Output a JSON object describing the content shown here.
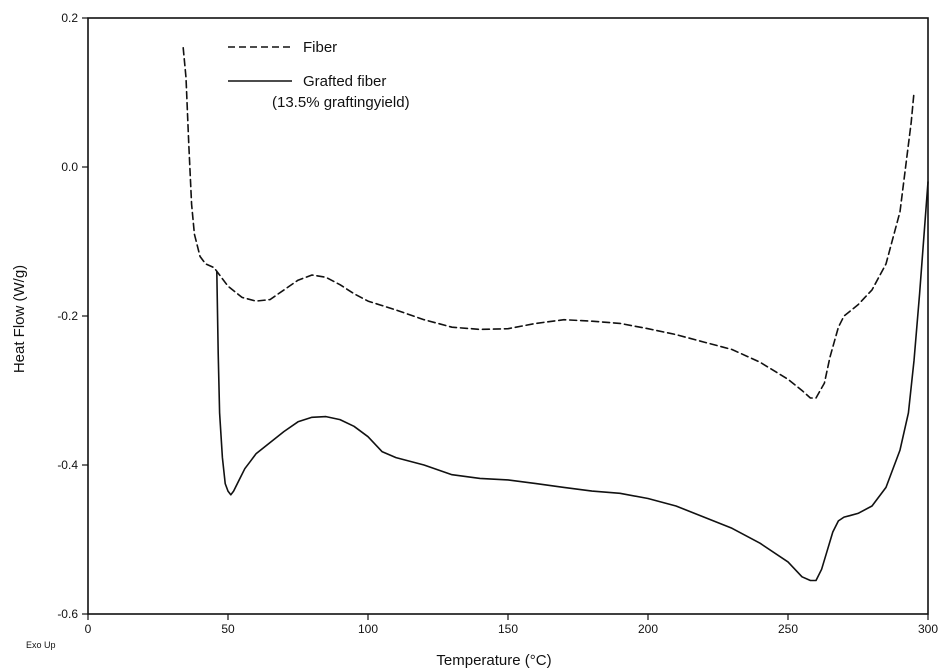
{
  "chart_data": {
    "type": "line",
    "title": "",
    "xlabel": "Temperature (°C)",
    "ylabel": "Heat Flow (W/g)",
    "xlim": [
      0,
      300
    ],
    "ylim": [
      -0.6,
      0.2
    ],
    "x_ticks": [
      0,
      50,
      100,
      150,
      200,
      250,
      300
    ],
    "y_ticks": [
      -0.6,
      -0.4,
      -0.2,
      0.0,
      0.2
    ],
    "x_tick_labels": [
      "0",
      "50",
      "100",
      "150",
      "200",
      "250",
      "300"
    ],
    "y_tick_labels": [
      "-0.6",
      "-0.4",
      "-0.2",
      "0.0",
      "0.2"
    ],
    "corner_note": "Exo Up",
    "grid": false,
    "legend": {
      "placement": "top-left",
      "entries": [
        {
          "series_index": 0,
          "label": "Fiber",
          "label2": ""
        },
        {
          "series_index": 1,
          "label": "Grafted fiber",
          "label2": "(13.5% graftingyield)"
        }
      ]
    },
    "series": [
      {
        "name": "Fiber",
        "style": "dashed",
        "color": "#111111",
        "x": [
          34,
          35,
          36,
          37,
          38,
          40,
          42,
          45,
          50,
          55,
          60,
          65,
          70,
          75,
          80,
          85,
          90,
          95,
          100,
          110,
          120,
          130,
          140,
          150,
          160,
          170,
          180,
          190,
          200,
          210,
          220,
          230,
          240,
          250,
          255,
          258,
          260,
          263,
          265,
          268,
          270,
          275,
          280,
          285,
          290,
          292,
          294,
          295
        ],
        "y": [
          0.16,
          0.12,
          0.03,
          -0.05,
          -0.09,
          -0.12,
          -0.13,
          -0.135,
          -0.16,
          -0.175,
          -0.18,
          -0.178,
          -0.165,
          -0.152,
          -0.145,
          -0.148,
          -0.158,
          -0.17,
          -0.18,
          -0.192,
          -0.205,
          -0.215,
          -0.218,
          -0.217,
          -0.21,
          -0.205,
          -0.207,
          -0.21,
          -0.217,
          -0.225,
          -0.235,
          -0.245,
          -0.262,
          -0.285,
          -0.3,
          -0.31,
          -0.31,
          -0.29,
          -0.255,
          -0.215,
          -0.2,
          -0.185,
          -0.165,
          -0.13,
          -0.06,
          0.0,
          0.06,
          0.1
        ]
      },
      {
        "name": "Grafted fiber",
        "style": "solid",
        "color": "#111111",
        "x": [
          46,
          46.5,
          47,
          48,
          49,
          50,
          51,
          52,
          54,
          56,
          58,
          60,
          65,
          70,
          75,
          80,
          85,
          90,
          95,
          100,
          105,
          110,
          120,
          130,
          140,
          150,
          160,
          170,
          180,
          190,
          200,
          210,
          220,
          230,
          240,
          250,
          255,
          258,
          260,
          262,
          264,
          266,
          268,
          270,
          272,
          275,
          280,
          285,
          290,
          293,
          295,
          297,
          299,
          300
        ],
        "y": [
          -0.14,
          -0.25,
          -0.33,
          -0.39,
          -0.425,
          -0.435,
          -0.44,
          -0.435,
          -0.42,
          -0.405,
          -0.395,
          -0.385,
          -0.37,
          -0.355,
          -0.342,
          -0.336,
          -0.335,
          -0.339,
          -0.348,
          -0.362,
          -0.382,
          -0.39,
          -0.4,
          -0.413,
          -0.418,
          -0.42,
          -0.425,
          -0.43,
          -0.435,
          -0.438,
          -0.445,
          -0.455,
          -0.47,
          -0.485,
          -0.505,
          -0.53,
          -0.55,
          -0.555,
          -0.555,
          -0.54,
          -0.515,
          -0.49,
          -0.475,
          -0.47,
          -0.468,
          -0.465,
          -0.455,
          -0.43,
          -0.38,
          -0.33,
          -0.26,
          -0.17,
          -0.07,
          -0.02
        ]
      }
    ]
  }
}
